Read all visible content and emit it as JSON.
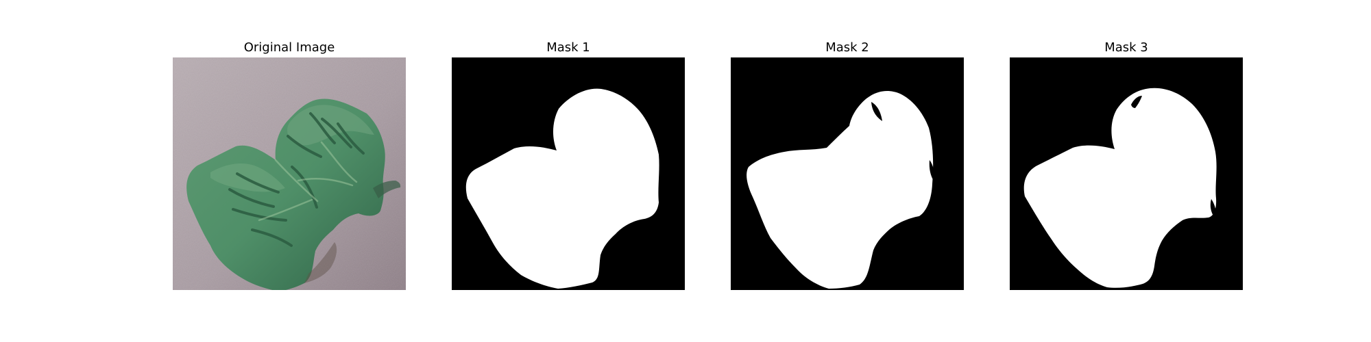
{
  "figure": {
    "background": "#ffffff",
    "panels": [
      {
        "title": "Original Image",
        "kind": "photo",
        "content": "green leaf on gray textured surface",
        "colors": {
          "background": "#a99ca3",
          "leaf": "#4f8f68",
          "leaf_shadow": "#2f6347",
          "leaf_highlight": "#78ad86"
        }
      },
      {
        "title": "Mask 1",
        "kind": "binary-mask",
        "colors": {
          "background": "#000000",
          "mask": "#ffffff"
        }
      },
      {
        "title": "Mask 2",
        "kind": "binary-mask",
        "colors": {
          "background": "#000000",
          "mask": "#ffffff"
        }
      },
      {
        "title": "Mask 3",
        "kind": "binary-mask",
        "colors": {
          "background": "#000000",
          "mask": "#ffffff"
        }
      }
    ]
  }
}
